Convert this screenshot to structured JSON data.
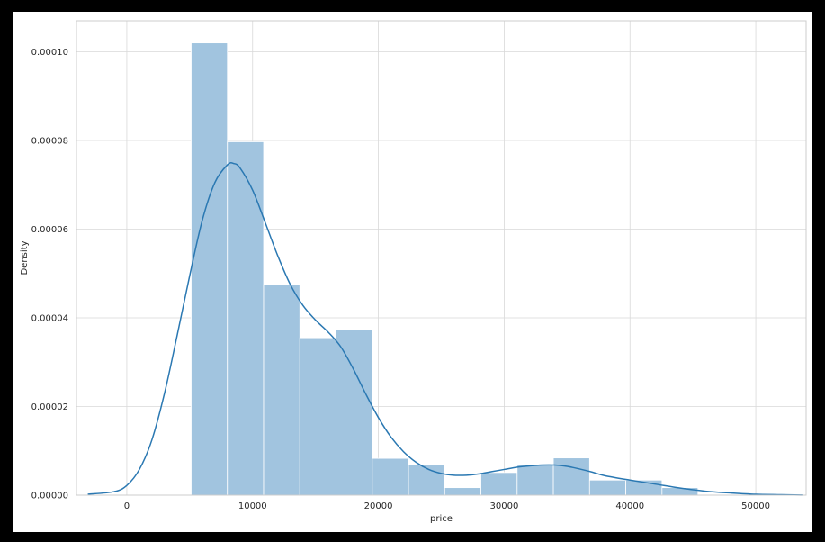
{
  "chart_data": {
    "type": "histogram",
    "title": "",
    "xlabel": "price",
    "ylabel": "Density",
    "xlim": [
      -4000,
      54000
    ],
    "ylim": [
      0,
      0.000107
    ],
    "grid": true,
    "x_ticks": [
      {
        "value": 0,
        "label": "0"
      },
      {
        "value": 10000,
        "label": "10000"
      },
      {
        "value": 20000,
        "label": "20000"
      },
      {
        "value": 30000,
        "label": "30000"
      },
      {
        "value": 40000,
        "label": "40000"
      },
      {
        "value": 50000,
        "label": "50000"
      }
    ],
    "y_ticks": [
      {
        "value": 0,
        "label": "0.00000"
      },
      {
        "value": 2e-05,
        "label": "0.00002"
      },
      {
        "value": 4e-05,
        "label": "0.00004"
      },
      {
        "value": 6e-05,
        "label": "0.00006"
      },
      {
        "value": 8e-05,
        "label": "0.00008"
      },
      {
        "value": 0.0001,
        "label": "0.00010"
      }
    ],
    "bins": [
      {
        "x0": 5118,
        "x1": 7997,
        "density": 0.000102
      },
      {
        "x0": 7997,
        "x1": 10876,
        "density": 7.97e-05
      },
      {
        "x0": 10876,
        "x1": 13755,
        "density": 4.75e-05
      },
      {
        "x0": 13755,
        "x1": 16634,
        "density": 3.55e-05
      },
      {
        "x0": 16634,
        "x1": 19513,
        "density": 3.73e-05
      },
      {
        "x0": 19513,
        "x1": 22392,
        "density": 8.3e-06
      },
      {
        "x0": 22392,
        "x1": 25271,
        "density": 6.8e-06
      },
      {
        "x0": 25271,
        "x1": 28150,
        "density": 1.7e-06
      },
      {
        "x0": 28150,
        "x1": 31029,
        "density": 5.1e-06
      },
      {
        "x0": 31029,
        "x1": 33908,
        "density": 6.8e-06
      },
      {
        "x0": 33908,
        "x1": 36787,
        "density": 8.4e-06
      },
      {
        "x0": 36787,
        "x1": 39666,
        "density": 3.4e-06
      },
      {
        "x0": 39666,
        "x1": 42545,
        "density": 3.4e-06
      },
      {
        "x0": 42545,
        "x1": 45400,
        "density": 1.7e-06
      }
    ],
    "kde": {
      "x": [
        -3100,
        -1000,
        0,
        1000,
        2000,
        3000,
        4000,
        5000,
        6000,
        7000,
        8000,
        8500,
        9000,
        10000,
        11000,
        12000,
        13000,
        14000,
        15000,
        16000,
        17000,
        18000,
        19000,
        20000,
        21000,
        22000,
        23000,
        24000,
        25000,
        26000,
        27000,
        28000,
        29000,
        30000,
        31000,
        32000,
        33000,
        34000,
        35000,
        36000,
        37000,
        38000,
        40000,
        42000,
        44000,
        46000,
        48000,
        50000,
        52000,
        53700
      ],
      "y": [
        2e-07,
        8e-07,
        2.2e-06,
        5.8e-06,
        1.25e-05,
        2.3e-05,
        3.6e-05,
        4.95e-05,
        6.2e-05,
        7.05e-05,
        7.45e-05,
        7.48e-05,
        7.38e-05,
        6.88e-05,
        6.15e-05,
        5.4e-05,
        4.75e-05,
        4.28e-05,
        3.95e-05,
        3.68e-05,
        3.35e-05,
        2.85e-05,
        2.28e-05,
        1.75e-05,
        1.31e-05,
        9.8e-06,
        7.4e-06,
        5.8e-06,
        4.9e-06,
        4.5e-06,
        4.5e-06,
        4.8e-06,
        5.3e-06,
        5.8e-06,
        6.3e-06,
        6.6e-06,
        6.8e-06,
        6.8e-06,
        6.5e-06,
        5.9e-06,
        5.2e-06,
        4.4e-06,
        3.4e-06,
        2.5e-06,
        1.6e-06,
        9e-07,
        5e-07,
        2e-07,
        1e-07,
        2e-08
      ]
    },
    "colors": {
      "bar_fill": "#a1c4df",
      "bar_edge": "#ffffff",
      "kde_line": "#2a78b2",
      "grid": "#d9d9d9",
      "plot_border": "#cccccc"
    }
  }
}
